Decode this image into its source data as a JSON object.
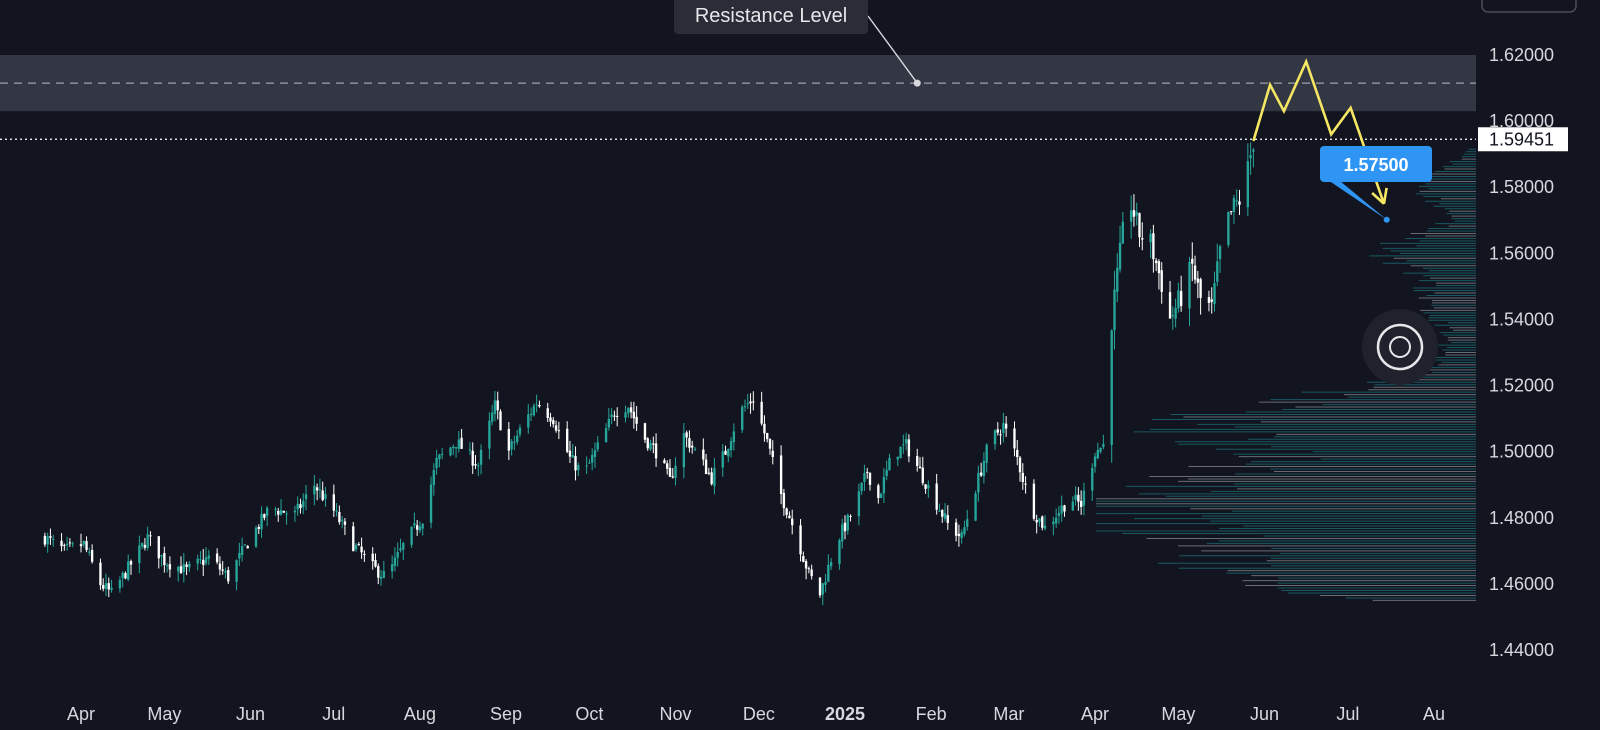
{
  "chart_data": {
    "type": "candlestick",
    "title": "",
    "colors": {
      "up": "#26a69a",
      "down": "#ffffff",
      "projection": "#f5e663",
      "target": "#2f95f5",
      "zone": "#3a3d4a"
    },
    "ylim": [
      1.435,
      1.635
    ],
    "y_ticks": [
      "1.62000",
      "1.60000",
      "1.58000",
      "1.56000",
      "1.54000",
      "1.52000",
      "1.50000",
      "1.48000",
      "1.46000",
      "1.44000"
    ],
    "y_tick_values": [
      1.62,
      1.6,
      1.58,
      1.56,
      1.54,
      1.52,
      1.5,
      1.48,
      1.46,
      1.44
    ],
    "x_ticks": [
      {
        "label": "Apr",
        "date": "2024-04-01",
        "bold": false
      },
      {
        "label": "May",
        "date": "2024-05-01",
        "bold": false
      },
      {
        "label": "Jun",
        "date": "2024-06-01",
        "bold": false
      },
      {
        "label": "Jul",
        "date": "2024-07-01",
        "bold": false
      },
      {
        "label": "Aug",
        "date": "2024-08-01",
        "bold": false
      },
      {
        "label": "Sep",
        "date": "2024-09-01",
        "bold": false
      },
      {
        "label": "Oct",
        "date": "2024-10-01",
        "bold": false
      },
      {
        "label": "Nov",
        "date": "2024-11-01",
        "bold": false
      },
      {
        "label": "Dec",
        "date": "2024-12-01",
        "bold": false
      },
      {
        "label": "2025",
        "date": "2025-01-01",
        "bold": true
      },
      {
        "label": "Feb",
        "date": "2025-02-01",
        "bold": false
      },
      {
        "label": "Mar",
        "date": "2025-03-01",
        "bold": false
      },
      {
        "label": "Apr",
        "date": "2025-04-01",
        "bold": false
      },
      {
        "label": "May",
        "date": "2025-05-01",
        "bold": false
      },
      {
        "label": "Jun",
        "date": "2025-06-01",
        "bold": false
      },
      {
        "label": "Jul",
        "date": "2025-07-01",
        "bold": false
      },
      {
        "label": "Au",
        "date": "2025-08-01",
        "bold": false
      }
    ],
    "close_path": [
      [
        "2024-03-19",
        1.474
      ],
      [
        "2024-03-26",
        1.47
      ],
      [
        "2024-04-02",
        1.472
      ],
      [
        "2024-04-08",
        1.46
      ],
      [
        "2024-04-12",
        1.457
      ],
      [
        "2024-04-19",
        1.466
      ],
      [
        "2024-04-25",
        1.474
      ],
      [
        "2024-05-01",
        1.467
      ],
      [
        "2024-05-09",
        1.464
      ],
      [
        "2024-05-17",
        1.468
      ],
      [
        "2024-05-24",
        1.462
      ],
      [
        "2024-06-01",
        1.474
      ],
      [
        "2024-06-08",
        1.483
      ],
      [
        "2024-06-17",
        1.481
      ],
      [
        "2024-06-24",
        1.49
      ],
      [
        "2024-07-01",
        1.482
      ],
      [
        "2024-07-08",
        1.472
      ],
      [
        "2024-07-15",
        1.465
      ],
      [
        "2024-07-20",
        1.462
      ],
      [
        "2024-07-27",
        1.473
      ],
      [
        "2024-08-02",
        1.48
      ],
      [
        "2024-08-07",
        1.497
      ],
      [
        "2024-08-14",
        1.503
      ],
      [
        "2024-08-22",
        1.496
      ],
      [
        "2024-08-28",
        1.514
      ],
      [
        "2024-09-02",
        1.5
      ],
      [
        "2024-09-07",
        1.508
      ],
      [
        "2024-09-12",
        1.515
      ],
      [
        "2024-09-18",
        1.51
      ],
      [
        "2024-09-24",
        1.498
      ],
      [
        "2024-09-29",
        1.493
      ],
      [
        "2024-10-05",
        1.503
      ],
      [
        "2024-10-10",
        1.512
      ],
      [
        "2024-10-15",
        1.514
      ],
      [
        "2024-10-20",
        1.505
      ],
      [
        "2024-10-25",
        1.5
      ],
      [
        "2024-10-30",
        1.491
      ],
      [
        "2024-11-04",
        1.505
      ],
      [
        "2024-11-09",
        1.499
      ],
      [
        "2024-11-14",
        1.492
      ],
      [
        "2024-11-19",
        1.5
      ],
      [
        "2024-11-24",
        1.512
      ],
      [
        "2024-11-29",
        1.516
      ],
      [
        "2024-12-04",
        1.503
      ],
      [
        "2024-12-09",
        1.487
      ],
      [
        "2024-12-14",
        1.476
      ],
      [
        "2024-12-19",
        1.463
      ],
      [
        "2024-12-23",
        1.457
      ],
      [
        "2024-12-29",
        1.473
      ],
      [
        "2025-01-04",
        1.482
      ],
      [
        "2025-01-09",
        1.494
      ],
      [
        "2025-01-13",
        1.486
      ],
      [
        "2025-01-18",
        1.499
      ],
      [
        "2025-01-23",
        1.502
      ],
      [
        "2025-01-28",
        1.494
      ],
      [
        "2025-02-02",
        1.486
      ],
      [
        "2025-02-07",
        1.478
      ],
      [
        "2025-02-12",
        1.474
      ],
      [
        "2025-02-17",
        1.489
      ],
      [
        "2025-02-22",
        1.503
      ],
      [
        "2025-02-27",
        1.508
      ],
      [
        "2025-03-04",
        1.498
      ],
      [
        "2025-03-09",
        1.483
      ],
      [
        "2025-03-14",
        1.477
      ],
      [
        "2025-03-19",
        1.482
      ],
      [
        "2025-03-23",
        1.486
      ],
      [
        "2025-03-27",
        1.484
      ],
      [
        "2025-04-01",
        1.5
      ],
      [
        "2025-04-04",
        1.502
      ],
      [
        "2025-04-07",
        1.54
      ],
      [
        "2025-04-11",
        1.566
      ],
      [
        "2025-04-14",
        1.575
      ],
      [
        "2025-04-17",
        1.566
      ],
      [
        "2025-04-21",
        1.563
      ],
      [
        "2025-04-25",
        1.551
      ],
      [
        "2025-04-28",
        1.54
      ],
      [
        "2025-05-02",
        1.547
      ],
      [
        "2025-05-06",
        1.556
      ],
      [
        "2025-05-09",
        1.546
      ],
      [
        "2025-05-13",
        1.543
      ],
      [
        "2025-05-17",
        1.566
      ],
      [
        "2025-05-21",
        1.574
      ],
      [
        "2025-05-24",
        1.577
      ],
      [
        "2025-05-28",
        1.594
      ]
    ],
    "projection": [
      [
        "2025-05-28",
        1.594
      ],
      [
        "2025-06-03",
        1.611
      ],
      [
        "2025-06-08",
        1.603
      ],
      [
        "2025-06-16",
        1.618
      ],
      [
        "2025-06-25",
        1.596
      ],
      [
        "2025-07-02",
        1.604
      ],
      [
        "2025-07-14",
        1.575
      ]
    ],
    "resistance_zone": {
      "low": 1.603,
      "high": 1.62,
      "mid": 1.6115
    },
    "last_price": {
      "value": 1.59451,
      "label": "1.59451"
    },
    "resistance_label": "Resistance Level",
    "target": {
      "value": 1.575,
      "label": "1.57500",
      "date": "2025-07-15"
    },
    "volume_profile": {
      "side": "right"
    }
  }
}
